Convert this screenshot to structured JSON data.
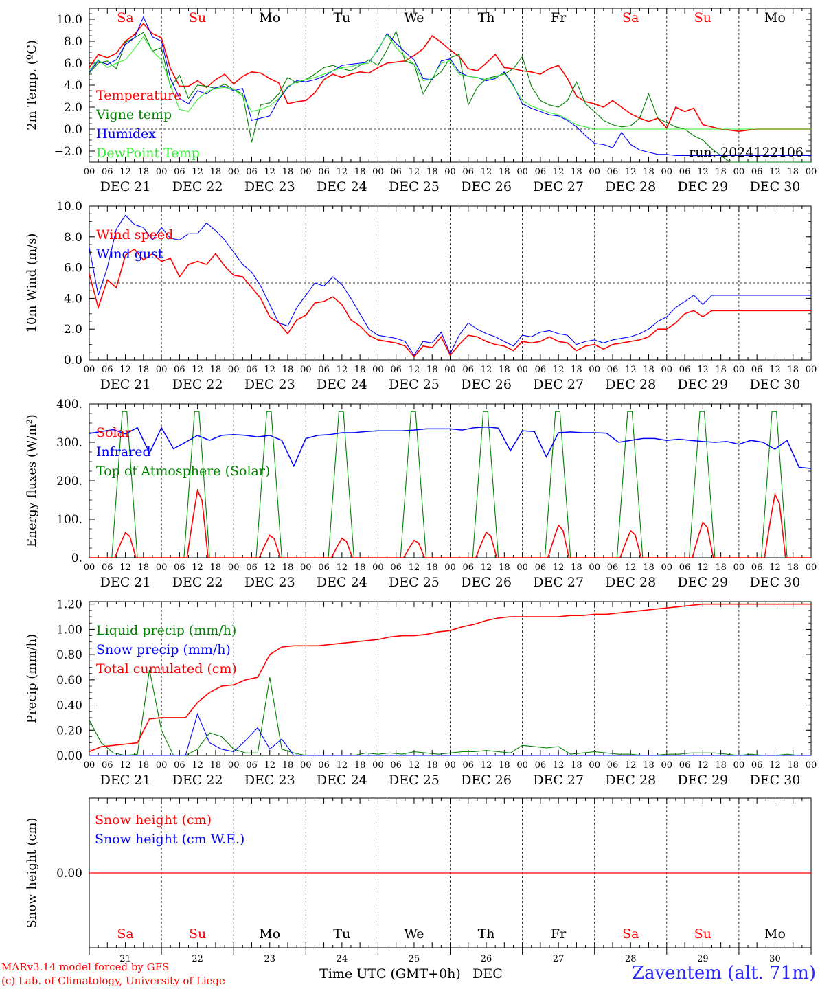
{
  "chart_data": [
    {
      "type": "line",
      "ylabel": "2m Temp. (ºC)",
      "ylim": [
        -3.0,
        11.0
      ],
      "yticks": [
        "10.0",
        "8.0",
        "6.0",
        "4.0",
        "2.0",
        "0.0",
        "−2.0"
      ],
      "reference_line": 0.0,
      "annotation": "run: 2024122106",
      "x_hours": [
        0,
        3,
        6,
        9,
        12,
        15,
        18,
        21,
        24,
        27,
        30,
        33,
        36,
        39,
        42,
        45,
        48,
        51,
        54,
        57,
        60,
        63,
        66,
        69,
        72,
        75,
        78,
        81,
        84,
        87,
        90,
        93,
        96,
        99,
        102,
        105,
        108,
        111,
        114,
        117,
        120,
        123,
        126,
        129,
        132,
        135,
        138,
        141,
        144,
        147,
        150,
        153,
        156,
        159,
        162,
        165,
        168,
        171,
        174,
        177,
        180,
        183,
        186,
        189,
        192,
        195,
        198,
        201,
        204,
        207,
        210,
        213,
        216,
        219,
        222,
        225,
        228,
        231,
        234,
        237,
        240
      ],
      "series": [
        {
          "name": "Temperature",
          "color": "#ff0000",
          "values": [
            5.6,
            6.8,
            6.5,
            6.9,
            8.0,
            8.6,
            9.6,
            8.7,
            8.3,
            5.5,
            3.9,
            3.9,
            4.4,
            3.8,
            4.5,
            5.0,
            4.1,
            4.8,
            5.2,
            5.1,
            4.6,
            4.2,
            2.3,
            2.5,
            2.6,
            3.3,
            4.5,
            5.0,
            4.7,
            5.0,
            5.2,
            5.1,
            5.6,
            6.0,
            6.1,
            6.2,
            6.7,
            7.3,
            8.5,
            7.9,
            7.2,
            6.6,
            5.5,
            5.3,
            6.0,
            6.8,
            5.6,
            5.5,
            5.3,
            5.2,
            5.0,
            5.5,
            5.8,
            4.6,
            3.0,
            2.5,
            2.3,
            2.0,
            2.6,
            2.0,
            1.4,
            1.0,
            0.7,
            1.0,
            0.1,
            2.0,
            1.6,
            1.9,
            0.4,
            0.2,
            0.0,
            -0.1,
            -0.2,
            -0.1,
            0.0,
            0.0,
            0.0,
            0.0,
            0.0,
            0.0,
            0.0
          ],
          "note_hours_max": 240
        },
        {
          "name": "Vigne temp",
          "color": "#008000",
          "values": [
            5.1,
            6.0,
            6.2,
            5.5,
            7.9,
            8.3,
            8.8,
            7.1,
            7.4,
            3.8,
            4.9,
            2.8,
            4.0,
            3.9,
            3.7,
            4.1,
            3.6,
            3.2,
            -1.2,
            2.2,
            2.4,
            3.2,
            4.7,
            4.2,
            4.5,
            5.0,
            5.6,
            5.8,
            5.5,
            5.3,
            5.8,
            6.3,
            5.8,
            7.2,
            8.9,
            6.2,
            5.9,
            3.2,
            4.6,
            5.2,
            6.5,
            6.8,
            2.2,
            3.8,
            4.6,
            4.8,
            5.0,
            5.5,
            6.6,
            3.9,
            2.6,
            2.2,
            2.0,
            2.6,
            4.3,
            2.3,
            1.6,
            0.8,
            0.4,
            0.2,
            0.3,
            1.0,
            3.2,
            1.0,
            0.6,
            0.2,
            0.0,
            -0.6,
            -1.0,
            -1.8,
            -2.4,
            -3.0,
            -3.0,
            -3.0,
            -3.0,
            -3.0,
            -3.0,
            -3.0,
            -3.0,
            -3.0,
            -3.0
          ]
        },
        {
          "name": "Humidex",
          "color": "#0000ff",
          "values": [
            5.2,
            6.2,
            5.9,
            6.3,
            7.7,
            8.3,
            10.2,
            8.4,
            8.0,
            4.6,
            2.8,
            2.3,
            3.5,
            3.2,
            3.8,
            3.9,
            3.5,
            3.7,
            0.8,
            1.0,
            1.2,
            2.7,
            3.8,
            4.4,
            4.3,
            4.5,
            4.8,
            5.3,
            5.8,
            5.9,
            6.0,
            6.1,
            7.2,
            8.7,
            7.8,
            7.0,
            6.3,
            4.6,
            4.5,
            6.2,
            6.4,
            5.2,
            4.8,
            4.7,
            4.4,
            4.6,
            5.2,
            4.0,
            2.3,
            1.9,
            1.6,
            1.3,
            1.2,
            0.8,
            0.2,
            -0.6,
            -1.3,
            -1.4,
            -1.7,
            -0.3,
            -1.4,
            -1.9,
            -2.1,
            -2.3,
            -2.3,
            -2.4,
            -2.4,
            -2.4,
            -2.4,
            -2.4,
            -2.4,
            -2.4,
            -2.4,
            -2.4,
            -2.4,
            -2.4,
            -2.4,
            -2.4,
            -2.4,
            -2.4,
            -2.4
          ]
        },
        {
          "name": "DewPoint Temp",
          "color": "#33ee33",
          "values": [
            5.4,
            6.3,
            5.6,
            6.0,
            6.3,
            7.3,
            8.4,
            7.1,
            6.3,
            4.0,
            1.8,
            1.6,
            2.7,
            3.4,
            3.7,
            3.8,
            3.6,
            3.0,
            1.6,
            1.8,
            2.1,
            2.8,
            3.9,
            4.3,
            4.5,
            4.7,
            5.0,
            5.3,
            5.6,
            5.7,
            5.9,
            6.0,
            7.3,
            8.6,
            7.4,
            6.6,
            5.9,
            4.4,
            4.6,
            6.0,
            6.2,
            5.0,
            4.8,
            4.7,
            4.5,
            4.7,
            5.1,
            3.9,
            2.6,
            2.1,
            1.8,
            1.5,
            1.3,
            0.9,
            0.4,
            0.2,
            0.0,
            0.0,
            0.0,
            0.0,
            0.0,
            0.0,
            0.0,
            0.0,
            0.0,
            0.0,
            0.0,
            0.0,
            0.0,
            0.0,
            0.0,
            0.0,
            0.0,
            0.0,
            0.0,
            0.0,
            0.0,
            0.0,
            0.0,
            0.0,
            0.0
          ]
        }
      ]
    },
    {
      "type": "line",
      "ylabel": "10m Wind (m/s)",
      "ylim": [
        0.0,
        10.0
      ],
      "yticks": [
        "10.0",
        "8.0",
        "6.0",
        "4.0",
        "2.0",
        "0.0"
      ],
      "reference_line": 5.0,
      "series": [
        {
          "name": "Wind speed",
          "color": "#ff0000",
          "values": [
            5.6,
            3.4,
            5.2,
            4.7,
            6.8,
            7.2,
            6.5,
            6.9,
            6.4,
            6.6,
            5.4,
            6.2,
            6.4,
            6.2,
            6.9,
            6.1,
            5.5,
            5.4,
            4.7,
            4.0,
            2.8,
            2.4,
            1.7,
            2.6,
            2.9,
            3.7,
            3.8,
            4.1,
            3.6,
            2.6,
            2.2,
            1.6,
            1.3,
            1.2,
            1.1,
            0.9,
            0.2,
            0.9,
            0.8,
            1.5,
            0.3,
            1.0,
            1.6,
            1.5,
            1.2,
            1.0,
            0.9,
            0.6,
            1.2,
            1.1,
            1.2,
            1.5,
            1.2,
            1.1,
            0.6,
            0.9,
            1.0,
            0.7,
            1.0,
            1.1,
            1.2,
            1.3,
            1.5,
            2.0,
            2.0,
            2.4,
            3.0,
            3.2,
            2.8,
            3.2,
            3.2,
            3.2,
            3.2,
            3.2,
            3.2,
            3.2,
            3.2,
            3.2,
            3.2,
            3.2,
            3.2
          ]
        },
        {
          "name": "Wind gust",
          "color": "#0000ff",
          "values": [
            7.3,
            4.2,
            6.0,
            8.5,
            9.4,
            8.8,
            8.6,
            7.8,
            8.6,
            7.9,
            7.8,
            8.2,
            8.2,
            8.9,
            8.4,
            7.8,
            7.0,
            6.2,
            5.7,
            4.8,
            3.6,
            2.4,
            2.2,
            3.4,
            4.2,
            5.0,
            4.8,
            5.4,
            4.9,
            4.0,
            3.0,
            2.0,
            1.6,
            1.5,
            1.4,
            1.2,
            0.3,
            1.2,
            1.1,
            1.8,
            0.4,
            1.6,
            2.4,
            2.0,
            1.7,
            1.5,
            1.2,
            0.9,
            1.6,
            1.5,
            1.8,
            1.9,
            1.7,
            1.6,
            1.0,
            1.2,
            1.3,
            1.1,
            1.3,
            1.4,
            1.5,
            1.7,
            2.0,
            2.5,
            2.8,
            3.4,
            3.8,
            4.2,
            3.6,
            4.2,
            4.2,
            4.2,
            4.2,
            4.2,
            4.2,
            4.2,
            4.2,
            4.2,
            4.2,
            4.2,
            4.2
          ]
        }
      ]
    },
    {
      "type": "line",
      "ylabel": "Energy fluxes (W/m²)",
      "ylim": [
        0,
        400
      ],
      "yticks": [
        "400.",
        "300.",
        "200.",
        "100.",
        "0."
      ],
      "series": [
        {
          "name": "Solar",
          "color": "#ff0000",
          "day_peaks": [
            65,
            175,
            58,
            50,
            45,
            66,
            84,
            70,
            92,
            165
          ]
        },
        {
          "name": "Infrared",
          "color": "#0000ff",
          "values": [
            323,
            328,
            333,
            322,
            338,
            272,
            338,
            283,
            300,
            318,
            305,
            318,
            320,
            318,
            314,
            318,
            305,
            238,
            310,
            318,
            320,
            325,
            325,
            328,
            330,
            330,
            330,
            332,
            335,
            335,
            335,
            332,
            338,
            340,
            337,
            278,
            330,
            328,
            262,
            325,
            327,
            325,
            325,
            324,
            300,
            305,
            310,
            310,
            305,
            308,
            305,
            302,
            300,
            302,
            295,
            305,
            300,
            282,
            305,
            235,
            232
          ]
        },
        {
          "name": "Top of Atmosphere (Solar)",
          "color": "#008000",
          "day_peaks": [
            380,
            380,
            380,
            380,
            380,
            380,
            380,
            380,
            380,
            380
          ]
        }
      ]
    },
    {
      "type": "line",
      "ylabel": "Precip (mm/h)",
      "ylim": [
        0.0,
        1.22
      ],
      "yticks": [
        "1.20",
        "1.00",
        "0.80",
        "0.60",
        "0.40",
        "0.20",
        "0.00"
      ],
      "series": [
        {
          "name": "Liquid precip (mm/h)",
          "color": "#008000",
          "values": [
            0.28,
            0.1,
            0.02,
            0.0,
            0.01,
            0.68,
            0.2,
            0.0,
            0.0,
            0.05,
            0.18,
            0.15,
            0.05,
            0.02,
            0.02,
            0.62,
            0.05,
            0.02,
            0.0,
            0.0,
            0.0,
            0.0,
            0.0,
            0.02,
            0.01,
            0.02,
            0.01,
            0.03,
            0.02,
            0.01,
            0.02,
            0.03,
            0.03,
            0.04,
            0.03,
            0.02,
            0.08,
            0.07,
            0.06,
            0.07,
            0.01,
            0.02,
            0.03,
            0.02,
            0.01,
            0.01,
            0.0,
            0.0,
            0.01,
            0.01,
            0.02,
            0.02,
            0.02,
            0.01,
            0.0,
            0.01,
            0.0,
            0.0,
            0.01,
            0.0,
            0.0
          ]
        },
        {
          "name": "Snow precip (mm/h)",
          "color": "#0000ff",
          "values": [
            0.0,
            0.0,
            0.0,
            0.0,
            0.0,
            0.0,
            0.0,
            0.0,
            0.0,
            0.33,
            0.1,
            0.05,
            0.03,
            0.12,
            0.22,
            0.05,
            0.13,
            0.0,
            0.0,
            0.0,
            0.0,
            0.0,
            0.0,
            0.0,
            0.0,
            0.0,
            0.0,
            0.0,
            0.0,
            0.0,
            0.0,
            0.0,
            0.0,
            0.0,
            0.0,
            0.0,
            0.0,
            0.0,
            0.0,
            0.0,
            0.0,
            0.0,
            0.0,
            0.0,
            0.0,
            0.0,
            0.0,
            0.0,
            0.0,
            0.0,
            0.0,
            0.0,
            0.0,
            0.0,
            0.0,
            0.0,
            0.0,
            0.0,
            0.0,
            0.0,
            0.0
          ]
        },
        {
          "name": "Total cumulated (cm)",
          "color": "#ff0000",
          "values": [
            0.03,
            0.07,
            0.08,
            0.09,
            0.1,
            0.29,
            0.3,
            0.3,
            0.3,
            0.42,
            0.5,
            0.55,
            0.56,
            0.6,
            0.62,
            0.8,
            0.86,
            0.87,
            0.87,
            0.87,
            0.88,
            0.89,
            0.9,
            0.91,
            0.92,
            0.94,
            0.95,
            0.95,
            0.96,
            0.98,
            0.99,
            1.02,
            1.04,
            1.07,
            1.09,
            1.1,
            1.1,
            1.1,
            1.1,
            1.1,
            1.11,
            1.11,
            1.12,
            1.12,
            1.13,
            1.14,
            1.15,
            1.16,
            1.17,
            1.18,
            1.19,
            1.2,
            1.2,
            1.2,
            1.2,
            1.2,
            1.2,
            1.2,
            1.2,
            1.2,
            1.2
          ]
        }
      ]
    },
    {
      "type": "line",
      "ylabel": "Snow height (cm)",
      "ylim": [
        -1,
        1
      ],
      "yticks": [
        "0.00"
      ],
      "series": [
        {
          "name": "Snow height (cm)",
          "color": "#ff0000",
          "values": [
            0,
            0
          ]
        },
        {
          "name": "Snow height (cm W.E.)",
          "color": "#0000ff",
          "values": []
        }
      ]
    }
  ],
  "days": {
    "weekday_labels": [
      "Sa",
      "Su",
      "Mo",
      "Tu",
      "We",
      "Th",
      "Fr",
      "Sa",
      "Su",
      "Mo"
    ],
    "weekend_color": "#ff0000",
    "weekday_color": "#000000",
    "date_labels": [
      "DEC 21",
      "DEC 22",
      "DEC 23",
      "DEC 24",
      "DEC 25",
      "DEC 26",
      "DEC 27",
      "DEC 28",
      "DEC 29",
      "DEC 30"
    ],
    "hour_ticks": [
      "00",
      "06",
      "12",
      "18"
    ],
    "day_numbers": [
      "21",
      "22",
      "23",
      "24",
      "25",
      "26",
      "27",
      "28",
      "29",
      "30"
    ],
    "weekend_flags": [
      true,
      true,
      false,
      false,
      false,
      false,
      false,
      true,
      true,
      false
    ]
  },
  "xlabel": "Time UTC (GMT+0h)",
  "xlabel_month": "DEC",
  "footer": {
    "line1": "MARv3.14 model forced by GFS",
    "line2": "(c) Lab. of Climatology, University of Liege",
    "station": "Zaventem (alt. 71m)"
  }
}
